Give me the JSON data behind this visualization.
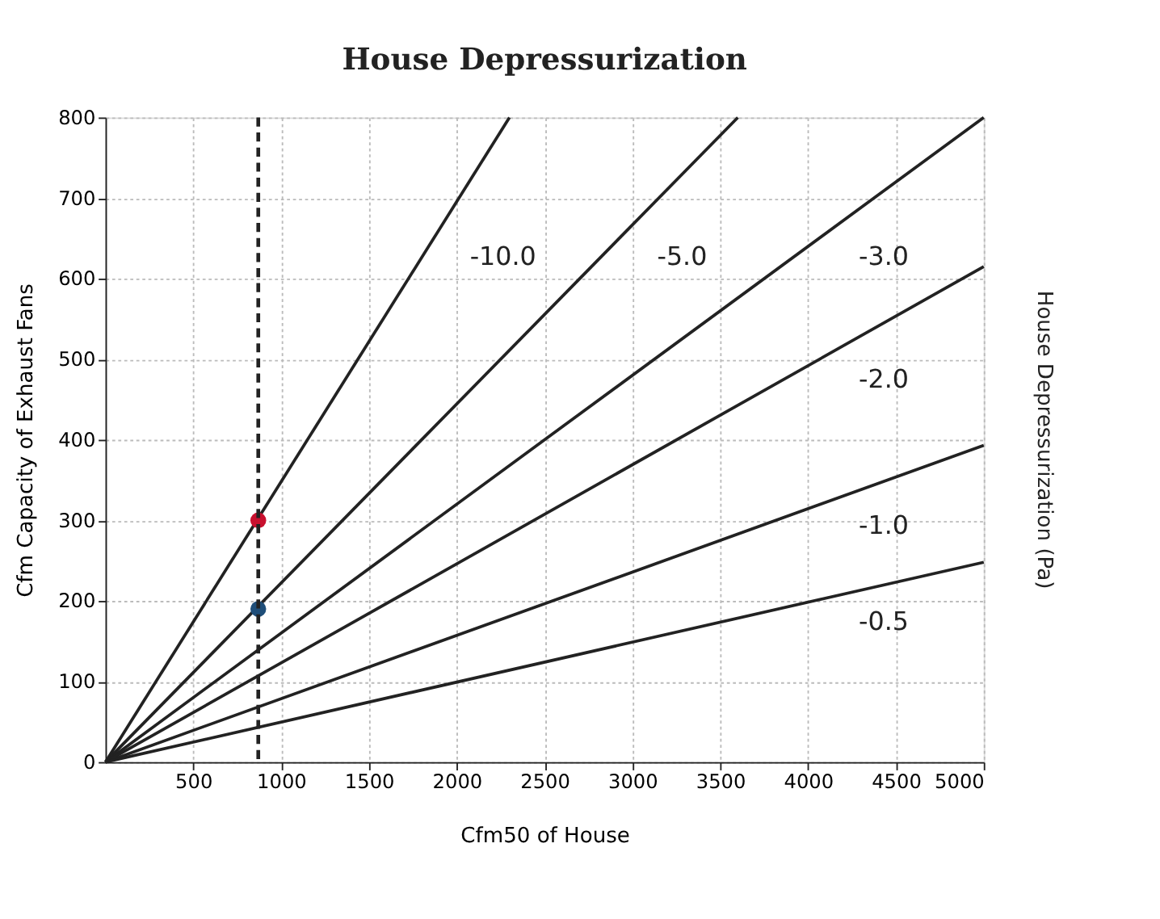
{
  "chart_data": {
    "type": "line",
    "title": "House Depressurization",
    "xlabel": "Cfm50 of House",
    "ylabel": "Cfm Capacity of Exhaust Fans",
    "annotations": [
      "House Depressurization (Pa)"
    ],
    "xlim": [
      0,
      5000
    ],
    "xticks": [
      500,
      1000,
      1500,
      2000,
      2500,
      3000,
      3500,
      4000,
      4500,
      5000
    ],
    "ylim": [
      0,
      800
    ],
    "yticks": [
      0,
      100,
      200,
      300,
      400,
      500,
      600,
      700,
      800
    ],
    "grid": true,
    "line_style": "solid",
    "marker": "none",
    "series": [
      {
        "name": "-10.0",
        "color": "#222222",
        "x": [
          0,
          2300
        ],
        "values": [
          0,
          800
        ]
      },
      {
        "name": "-5.0",
        "color": "#222222",
        "x": [
          0,
          3600
        ],
        "values": [
          0,
          800
        ]
      },
      {
        "name": "-3.0",
        "color": "#222222",
        "x": [
          0,
          5000
        ],
        "values": [
          0,
          800
        ]
      },
      {
        "name": "-2.0",
        "color": "#222222",
        "x": [
          0,
          5000
        ],
        "values": [
          0,
          615
        ]
      },
      {
        "name": "-1.0",
        "color": "#222222",
        "x": [
          0,
          5000
        ],
        "values": [
          0,
          393
        ]
      },
      {
        "name": "-0.5",
        "color": "#222222",
        "x": [
          0,
          5000
        ],
        "values": [
          0,
          248
        ]
      },
      {
        "type": "scatter",
        "color": "#c8102e",
        "x": [
          870
        ],
        "values": [
          300
        ],
        "marker": "circle"
      },
      {
        "type": "scatter",
        "color": "#1f4e79",
        "x": [
          870
        ],
        "values": [
          190
        ],
        "marker": "circle"
      }
    ],
    "ref_lines": [
      {
        "axis": "x",
        "value": 870,
        "line_style": "dashed",
        "color": "#222222"
      }
    ]
  }
}
